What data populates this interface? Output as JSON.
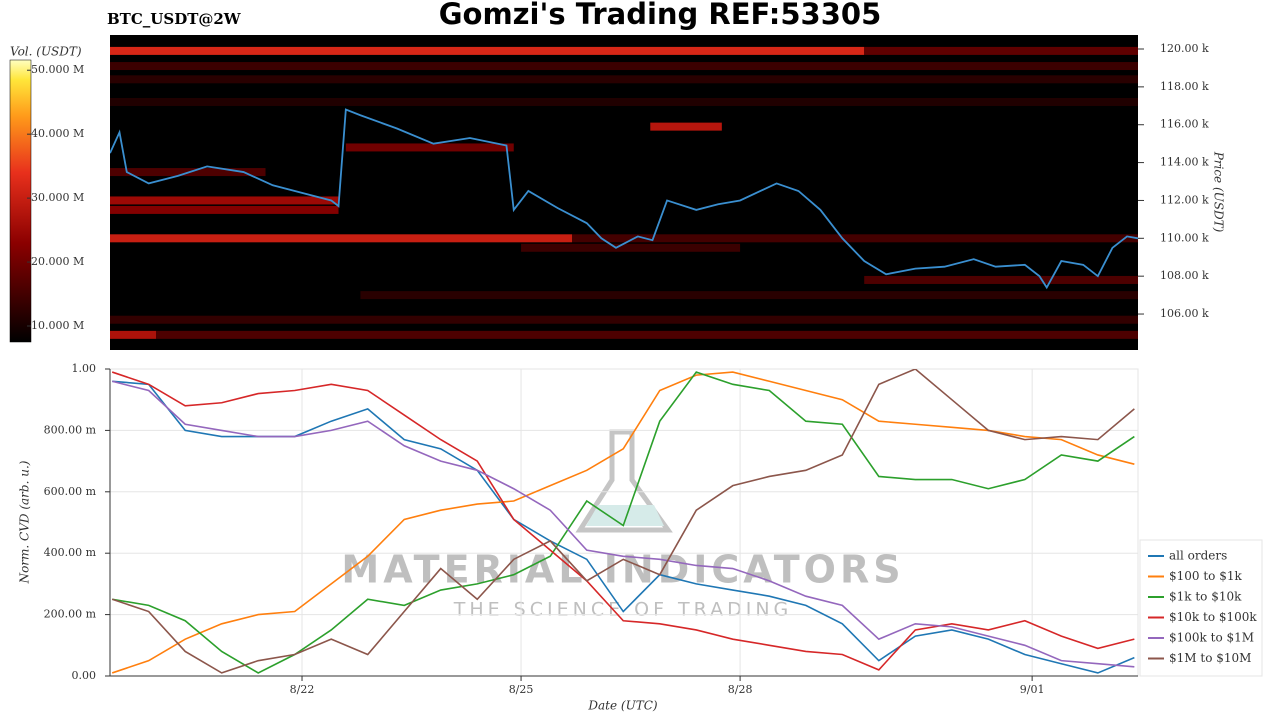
{
  "chart_data": [
    {
      "type": "heatmap",
      "title": "Gomzi's Trading REF:53305",
      "subtitle": "BTC_USDT@2W",
      "ylabel": "Price (USDT)",
      "colorbar_label": "Vol. (USDT)",
      "xlim": [
        19.37,
        33.45
      ],
      "ylim": [
        104100,
        120740
      ],
      "yticks": [
        {
          "value": 106000,
          "label": "106.00 k"
        },
        {
          "value": 108000,
          "label": "108.00 k"
        },
        {
          "value": 110000,
          "label": "110.00 k"
        },
        {
          "value": 112000,
          "label": "112.00 k"
        },
        {
          "value": 114000,
          "label": "114.00 k"
        },
        {
          "value": 116000,
          "label": "116.00 k"
        },
        {
          "value": 118000,
          "label": "118.00 k"
        },
        {
          "value": 120000,
          "label": "120.00 k"
        }
      ],
      "clim": [
        7500000,
        51600000
      ],
      "cticks": [
        {
          "value": 10000000,
          "label": "10.000 M"
        },
        {
          "value": 20000000,
          "label": "20.000 M"
        },
        {
          "value": 30000000,
          "label": "30.000 M"
        },
        {
          "value": 40000000,
          "label": "40.000 M"
        },
        {
          "value": 50000000,
          "label": "50.000 M"
        }
      ],
      "bands": {
        "start": [
          19.37,
          29.7,
          19.37,
          19.37,
          19.37,
          25.7,
          19.37,
          19.37,
          26.77,
          19.37,
          20.0,
          19.37,
          22.8,
          19.37,
          29.7,
          22.6,
          25.0,
          19.37
        ],
        "end": [
          29.7,
          33.45,
          33.45,
          33.45,
          25.7,
          33.45,
          22.5,
          22.5,
          27.75,
          20.0,
          33.45,
          33.45,
          33.45,
          33.45,
          33.45,
          24.9,
          28.0,
          21.5
        ],
        "price": [
          119900,
          119900,
          119100,
          118400,
          110000,
          110000,
          112000,
          111500,
          115900,
          104900,
          104900,
          105700,
          107000,
          117200,
          107800,
          114800,
          109500,
          113500
        ],
        "volume": [
          32000000,
          18000000,
          14000000,
          12000000,
          30000000,
          15000000,
          25000000,
          22000000,
          28000000,
          27000000,
          16000000,
          13000000,
          12000000,
          11000000,
          16000000,
          20000000,
          14000000,
          16000000
        ]
      },
      "price_line": {
        "color": "#3a8fd0",
        "x": [
          19.37,
          19.5,
          19.6,
          19.9,
          20.3,
          20.7,
          21.2,
          21.6,
          22.0,
          22.4,
          22.5,
          22.6,
          22.8,
          23.3,
          23.8,
          24.3,
          24.8,
          24.9,
          25.1,
          25.5,
          25.9,
          26.1,
          26.3,
          26.6,
          26.8,
          27.0,
          27.4,
          27.7,
          28.0,
          28.5,
          28.8,
          29.1,
          29.4,
          29.7,
          30.0,
          30.4,
          30.8,
          31.2,
          31.5,
          31.9,
          32.1,
          32.2,
          32.4,
          32.7,
          32.9,
          33.1,
          33.3,
          33.45
        ],
        "values": [
          114500,
          115600,
          113500,
          112900,
          113300,
          113800,
          113500,
          112800,
          112400,
          112000,
          111700,
          116800,
          116500,
          115800,
          115000,
          115300,
          114900,
          111500,
          112500,
          111600,
          110800,
          110000,
          109500,
          110100,
          109900,
          112000,
          111500,
          111800,
          112000,
          112900,
          112500,
          111500,
          110000,
          108800,
          108100,
          108400,
          108500,
          108900,
          108500,
          108600,
          108000,
          107400,
          108800,
          108600,
          108000,
          109500,
          110100,
          110000
        ]
      }
    },
    {
      "type": "line",
      "ylabel": "Norm. CVD (arb. u.)",
      "xlabel": "Date (UTC)",
      "watermark": "MATERIAL INDICATORS",
      "watermark_sub": "THE SCIENCE OF TRADING",
      "xlim": [
        19.37,
        33.45
      ],
      "ylim": [
        0,
        1
      ],
      "xticks": [
        {
          "value": 22,
          "label": "8/22"
        },
        {
          "value": 25,
          "label": "8/25"
        },
        {
          "value": 28,
          "label": "8/28"
        },
        {
          "value": 32,
          "label": "9/01"
        }
      ],
      "yticks": [
        {
          "value": 0,
          "label": "0.00"
        },
        {
          "value": 0.2,
          "label": "200.00 m"
        },
        {
          "value": 0.4,
          "label": "400.00 m"
        },
        {
          "value": 0.6,
          "label": "600.00 m"
        },
        {
          "value": 0.8,
          "label": "800.00 m"
        },
        {
          "value": 1,
          "label": "1.00"
        }
      ],
      "grid": true,
      "x": [
        19.4,
        19.9,
        20.4,
        20.9,
        21.4,
        21.9,
        22.4,
        22.9,
        23.4,
        23.9,
        24.4,
        24.9,
        25.4,
        25.9,
        26.4,
        26.9,
        27.4,
        27.9,
        28.4,
        28.9,
        29.4,
        29.9,
        30.4,
        30.9,
        31.4,
        31.9,
        32.4,
        32.9,
        33.4
      ],
      "series": [
        {
          "name": "all orders",
          "color": "#1f77b4",
          "values": [
            0.96,
            0.95,
            0.8,
            0.78,
            0.78,
            0.78,
            0.83,
            0.87,
            0.77,
            0.74,
            0.67,
            0.51,
            0.44,
            0.38,
            0.21,
            0.33,
            0.3,
            0.28,
            0.26,
            0.23,
            0.17,
            0.05,
            0.13,
            0.15,
            0.12,
            0.07,
            0.04,
            0.01,
            0.06
          ]
        },
        {
          "name": "$100 to $1k",
          "color": "#ff7f0e",
          "values": [
            0.01,
            0.05,
            0.12,
            0.17,
            0.2,
            0.21,
            0.3,
            0.39,
            0.51,
            0.54,
            0.56,
            0.57,
            0.62,
            0.67,
            0.74,
            0.93,
            0.98,
            0.99,
            0.96,
            0.93,
            0.9,
            0.83,
            0.82,
            0.81,
            0.8,
            0.78,
            0.77,
            0.72,
            0.69
          ]
        },
        {
          "name": "$1k to $10k",
          "color": "#2ca02c",
          "values": [
            0.25,
            0.23,
            0.18,
            0.08,
            0.01,
            0.07,
            0.15,
            0.25,
            0.23,
            0.28,
            0.3,
            0.33,
            0.39,
            0.57,
            0.49,
            0.83,
            0.99,
            0.95,
            0.93,
            0.83,
            0.82,
            0.65,
            0.64,
            0.64,
            0.61,
            0.64,
            0.72,
            0.7,
            0.78
          ]
        },
        {
          "name": "$10k to $100k",
          "color": "#d62728",
          "values": [
            0.99,
            0.95,
            0.88,
            0.89,
            0.92,
            0.93,
            0.95,
            0.93,
            0.85,
            0.77,
            0.7,
            0.51,
            0.41,
            0.31,
            0.18,
            0.17,
            0.15,
            0.12,
            0.1,
            0.08,
            0.07,
            0.02,
            0.15,
            0.17,
            0.15,
            0.18,
            0.13,
            0.09,
            0.12
          ]
        },
        {
          "name": "$100k to $1M",
          "color": "#9467bd",
          "values": [
            0.96,
            0.93,
            0.82,
            0.8,
            0.78,
            0.78,
            0.8,
            0.83,
            0.75,
            0.7,
            0.67,
            0.61,
            0.54,
            0.41,
            0.39,
            0.38,
            0.36,
            0.35,
            0.31,
            0.26,
            0.23,
            0.12,
            0.17,
            0.16,
            0.13,
            0.1,
            0.05,
            0.04,
            0.03
          ]
        },
        {
          "name": "$1M to $10M",
          "color": "#8c564b",
          "values": [
            0.25,
            0.21,
            0.08,
            0.01,
            0.05,
            0.07,
            0.12,
            0.07,
            0.21,
            0.35,
            0.25,
            0.38,
            0.44,
            0.31,
            0.38,
            0.33,
            0.54,
            0.62,
            0.65,
            0.67,
            0.72,
            0.95,
            1.0,
            0.9,
            0.8,
            0.77,
            0.78,
            0.77,
            0.87
          ]
        }
      ]
    }
  ]
}
